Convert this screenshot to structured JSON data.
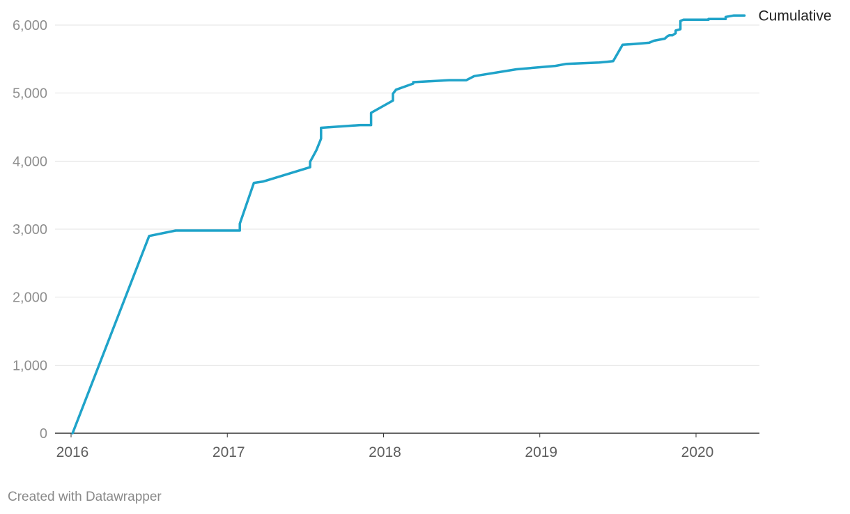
{
  "chart_data": {
    "type": "line",
    "title": "",
    "xlabel": "",
    "ylabel": "",
    "xlim": [
      2016.0,
      2020.4
    ],
    "ylim": [
      0,
      6000
    ],
    "x_ticks": [
      2016,
      2017,
      2018,
      2019,
      2020
    ],
    "x_tick_labels": [
      "2016",
      "2017",
      "2018",
      "2019",
      "2020"
    ],
    "y_ticks": [
      0,
      1000,
      2000,
      3000,
      4000,
      5000,
      6000
    ],
    "y_tick_labels": [
      "0",
      "1,000",
      "2,000",
      "3,000",
      "4,000",
      "5,000",
      "6,000"
    ],
    "grid": true,
    "legend": "none",
    "colors": {
      "series": "#1fa3c9",
      "grid": "#e3e3e3",
      "baseline": "#333333"
    },
    "series": [
      {
        "name": "Cumulative",
        "x": [
          2016.01,
          2016.5,
          2016.67,
          2016.83,
          2017.08,
          2017.08,
          2017.17,
          2017.23,
          2017.53,
          2017.53,
          2017.57,
          2017.6,
          2017.6,
          2017.85,
          2017.92,
          2017.92,
          2018.06,
          2018.06,
          2018.08,
          2018.19,
          2018.19,
          2018.42,
          2018.53,
          2018.58,
          2018.85,
          2019.1,
          2019.17,
          2019.38,
          2019.43,
          2019.47,
          2019.53,
          2019.6,
          2019.7,
          2019.73,
          2019.8,
          2019.82,
          2019.83,
          2019.85,
          2019.87,
          2019.87,
          2019.9,
          2019.9,
          2019.92,
          2020.08,
          2020.08,
          2020.19,
          2020.19,
          2020.24,
          2020.31
        ],
        "y": [
          0,
          2900,
          2980,
          2980,
          2980,
          3080,
          3680,
          3700,
          3910,
          3990,
          4160,
          4330,
          4490,
          4530,
          4530,
          4710,
          4890,
          4990,
          5050,
          5140,
          5160,
          5190,
          5190,
          5250,
          5350,
          5400,
          5430,
          5450,
          5460,
          5470,
          5710,
          5720,
          5740,
          5770,
          5800,
          5840,
          5850,
          5850,
          5880,
          5920,
          5940,
          6060,
          6080,
          6080,
          6090,
          6090,
          6120,
          6140,
          6140
        ]
      }
    ]
  },
  "footer": {
    "credit": "Created with Datawrapper"
  }
}
